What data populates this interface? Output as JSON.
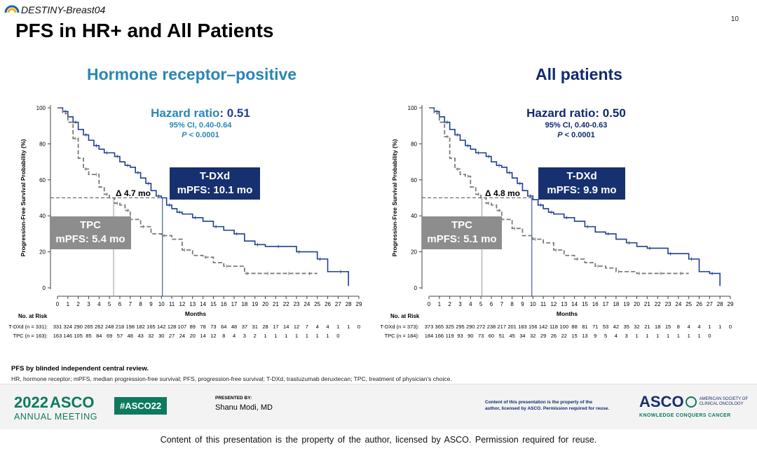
{
  "header": {
    "study": "DESTINY-Breast04",
    "page_number": "10",
    "title": "PFS in HR+ and All Patients"
  },
  "panels": [
    {
      "title": "Hormone receptor–positive",
      "hr_main_label": "Hazard ratio",
      "hr_main_value": ": 0.51",
      "ci": "95% CI, 0.40-0.64",
      "p_label": "P",
      "p_value": " < 0.0001",
      "tdxd_line1": "T-DXd",
      "tdxd_line2": "mPFS: 10.1 mo",
      "tpc_line1": "TPC",
      "tpc_line2": "mPFS: 5.4 mo",
      "delta": "Δ 4.7 mo",
      "risk_label": "No. at Risk",
      "tdxd_name": "T-DXd (n = 331):",
      "tpc_name": "TPC (n = 163):",
      "tdxd_risk": [
        "331",
        "324",
        "290",
        "265",
        "262",
        "248",
        "218",
        "198",
        "182",
        "165",
        "142",
        "128",
        "107",
        "89",
        "78",
        "73",
        "64",
        "48",
        "37",
        "31",
        "28",
        "17",
        "14",
        "12",
        "7",
        "4",
        "4",
        "1",
        "1",
        "0"
      ],
      "tpc_risk": [
        "163",
        "146",
        "105",
        "85",
        "84",
        "69",
        "57",
        "48",
        "43",
        "32",
        "30",
        "27",
        "24",
        "20",
        "14",
        "12",
        "8",
        "4",
        "3",
        "2",
        "1",
        "1",
        "1",
        "1",
        "1",
        "1",
        "1",
        "0"
      ]
    },
    {
      "title": "All patients",
      "hr_main_label": "Hazard ratio",
      "hr_main_value": ": 0.50",
      "ci": "95% CI, 0.40-0.63",
      "p_label": "P",
      "p_value": " < 0.0001",
      "tdxd_line1": "T-DXd",
      "tdxd_line2": "mPFS: 9.9 mo",
      "tpc_line1": "TPC",
      "tpc_line2": "mPFS: 5.1 mo",
      "delta": "Δ 4.8 mo",
      "risk_label": "No. at Risk",
      "tdxd_name": "T-DXd (n = 373):",
      "tpc_name": "TPC (n = 184):",
      "tdxd_risk": [
        "373",
        "365",
        "325",
        "295",
        "290",
        "272",
        "238",
        "217",
        "201",
        "183",
        "156",
        "142",
        "118",
        "100",
        "88",
        "81",
        "71",
        "53",
        "42",
        "35",
        "32",
        "21",
        "18",
        "15",
        "8",
        "4",
        "4",
        "1",
        "1",
        "0"
      ],
      "tpc_risk": [
        "184",
        "166",
        "119",
        "93",
        "90",
        "73",
        "60",
        "51",
        "45",
        "34",
        "32",
        "29",
        "26",
        "22",
        "15",
        "13",
        "9",
        "5",
        "4",
        "3",
        "1",
        "1",
        "1",
        "1",
        "1",
        "1",
        "1",
        "0"
      ]
    }
  ],
  "chart_data": [
    {
      "type": "line",
      "ylabel": "Progression-Free Survival Probability (%)",
      "xlabel": "Months",
      "xlim": [
        0,
        29
      ],
      "ylim": [
        0,
        100
      ],
      "xticks": [
        0,
        1,
        2,
        3,
        4,
        5,
        6,
        7,
        8,
        9,
        10,
        11,
        12,
        13,
        14,
        15,
        16,
        17,
        18,
        19,
        20,
        21,
        22,
        23,
        24,
        25,
        26,
        27,
        28,
        29
      ],
      "yticks": [
        0,
        20,
        40,
        60,
        80,
        100
      ],
      "series": [
        {
          "name": "T-DXd",
          "color": "#1f3f91",
          "dashed": false,
          "x": [
            0,
            0.5,
            1,
            1.5,
            2,
            2.5,
            3,
            3.5,
            4,
            4.5,
            5,
            5.5,
            6,
            6.5,
            7,
            7.5,
            8,
            8.5,
            9,
            9.5,
            10,
            10.5,
            11,
            11.5,
            12,
            13,
            14,
            15,
            16,
            17,
            18,
            19,
            20,
            21,
            22,
            23,
            24,
            25,
            26,
            27,
            28
          ],
          "y": [
            100,
            98,
            95,
            92,
            88,
            85,
            82,
            79,
            77,
            75,
            75,
            73,
            70,
            68,
            67,
            64,
            61,
            58,
            54,
            51,
            50,
            46,
            44,
            42,
            41,
            39,
            37,
            34,
            32,
            30,
            26,
            24,
            23,
            23,
            23,
            20,
            20,
            16,
            9,
            9,
            1
          ]
        },
        {
          "name": "TPC",
          "color": "#7a7a7a",
          "dashed": true,
          "x": [
            0,
            0.5,
            1,
            1.5,
            2,
            2.5,
            3,
            3.5,
            4,
            4.5,
            5,
            5.5,
            6,
            6.5,
            7,
            8,
            9,
            10,
            11,
            12,
            13,
            14,
            15,
            16,
            17,
            18,
            19,
            20,
            21,
            22,
            23,
            24,
            25
          ],
          "y": [
            100,
            97,
            92,
            83,
            72,
            66,
            63,
            63,
            56,
            52,
            50,
            47,
            46,
            43,
            38,
            34,
            30,
            29,
            27,
            21,
            18,
            17,
            14,
            12,
            12,
            8,
            8,
            8,
            8,
            8,
            8,
            8,
            8
          ]
        }
      ],
      "medians": {
        "tdxd": 10.1,
        "tpc": 5.4,
        "level": 50
      }
    },
    {
      "type": "line",
      "ylabel": "Progression-Free Survival Probability (%)",
      "xlabel": "Months",
      "xlim": [
        0,
        29
      ],
      "ylim": [
        0,
        100
      ],
      "xticks": [
        0,
        1,
        2,
        3,
        4,
        5,
        6,
        7,
        8,
        9,
        10,
        11,
        12,
        13,
        14,
        15,
        16,
        17,
        18,
        19,
        20,
        21,
        22,
        23,
        24,
        25,
        26,
        27,
        28,
        29
      ],
      "yticks": [
        0,
        20,
        40,
        60,
        80,
        100
      ],
      "series": [
        {
          "name": "T-DXd",
          "color": "#1f3f91",
          "dashed": false,
          "x": [
            0,
            0.5,
            1,
            1.5,
            2,
            2.5,
            3,
            3.5,
            4,
            4.5,
            5,
            5.5,
            6,
            6.5,
            7,
            7.5,
            8,
            8.5,
            9,
            9.5,
            10,
            10.5,
            11,
            11.5,
            12,
            13,
            14,
            15,
            16,
            17,
            18,
            19,
            20,
            21,
            22,
            23,
            24,
            25,
            26,
            27,
            28
          ],
          "y": [
            100,
            98,
            95,
            92,
            88,
            85,
            82,
            79,
            77,
            75,
            75,
            73,
            70,
            68,
            67,
            64,
            61,
            58,
            54,
            51,
            49,
            46,
            44,
            42,
            41,
            39,
            37,
            34,
            31,
            30,
            27,
            25,
            23,
            22,
            22,
            19,
            19,
            16,
            9,
            8,
            1
          ]
        },
        {
          "name": "TPC",
          "color": "#7a7a7a",
          "dashed": true,
          "x": [
            0,
            0.5,
            1,
            1.5,
            2,
            2.5,
            3,
            3.5,
            4,
            4.5,
            5,
            5.5,
            6,
            6.5,
            7,
            8,
            9,
            10,
            11,
            12,
            13,
            14,
            15,
            16,
            17,
            18,
            19,
            20,
            21,
            22,
            23,
            24,
            25
          ],
          "y": [
            100,
            97,
            92,
            84,
            72,
            66,
            63,
            62,
            56,
            52,
            50,
            47,
            46,
            43,
            38,
            33,
            29,
            27,
            25,
            21,
            18,
            16,
            14,
            12,
            11,
            9,
            9,
            8,
            8,
            8,
            8,
            8,
            8
          ]
        }
      ],
      "medians": {
        "tdxd": 9.9,
        "tpc": 5.1,
        "level": 50
      }
    }
  ],
  "notes": {
    "line1": "PFS by blinded independent central review.",
    "line2": "HR, hormone receptor; mPFS, median progression-free survival; PFS, progression-free survival; T-DXd, trastuzumab deruxtecan; TPC, treatment of physician's choice."
  },
  "footer": {
    "year": "2022",
    "asco": "ASCO",
    "annual_meeting": "ANNUAL MEETING",
    "hashtag": "#ASCO22",
    "presented_by": "PRESENTED BY:",
    "presenter": "Shanu Modi, MD",
    "rights_line1": "Content of this presentation is the property of the",
    "rights_line2": "author, licensed by ASCO. Permission required for reuse.",
    "asco_right": "ASCO",
    "society_line1": "AMERICAN SOCIETY OF",
    "society_line2": "CLINICAL ONCOLOGY",
    "tagline": "KNOWLEDGE CONQUERS CANCER"
  },
  "bottom_note": "Content of this presentation is the property of the author, licensed by ASCO. Permission required for reuse.",
  "colors": {
    "hr_blue": "#2a86b5",
    "navy": "#17306f",
    "tdxd_line": "#1f3f91",
    "tpc_line": "#7a7a7a",
    "asco_green": "#0d7a5f"
  }
}
